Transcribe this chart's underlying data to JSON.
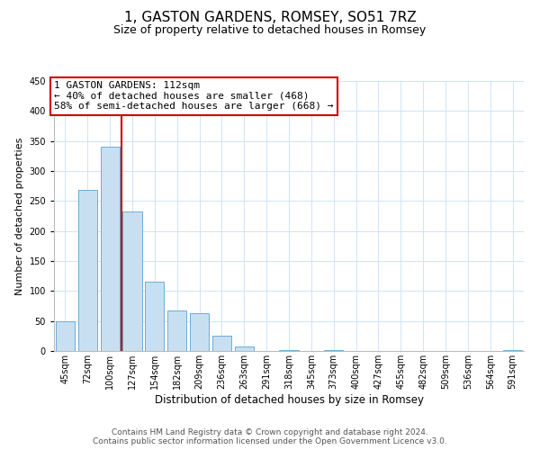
{
  "title": "1, GASTON GARDENS, ROMSEY, SO51 7RZ",
  "subtitle": "Size of property relative to detached houses in Romsey",
  "xlabel": "Distribution of detached houses by size in Romsey",
  "ylabel": "Number of detached properties",
  "bar_labels": [
    "45sqm",
    "72sqm",
    "100sqm",
    "127sqm",
    "154sqm",
    "182sqm",
    "209sqm",
    "236sqm",
    "263sqm",
    "291sqm",
    "318sqm",
    "345sqm",
    "373sqm",
    "400sqm",
    "427sqm",
    "455sqm",
    "482sqm",
    "509sqm",
    "536sqm",
    "564sqm",
    "591sqm"
  ],
  "bar_values": [
    50,
    268,
    340,
    233,
    115,
    68,
    63,
    25,
    7,
    0,
    2,
    0,
    2,
    0,
    0,
    0,
    0,
    0,
    0,
    0,
    2
  ],
  "bar_color": "#c8dff2",
  "bar_edge_color": "#6aaed6",
  "red_line_x": 2.5,
  "annotation_title": "1 GASTON GARDENS: 112sqm",
  "annotation_line1": "← 40% of detached houses are smaller (468)",
  "annotation_line2": "58% of semi-detached houses are larger (668) →",
  "annotation_box_color": "#ffffff",
  "annotation_box_edge": "#cc0000",
  "red_line_color": "#cc0000",
  "ylim": [
    0,
    450
  ],
  "grid_color": "#d0e4f7",
  "footer_line1": "Contains HM Land Registry data © Crown copyright and database right 2024.",
  "footer_line2": "Contains public sector information licensed under the Open Government Licence v3.0.",
  "background_color": "#ffffff",
  "title_fontsize": 11,
  "subtitle_fontsize": 9,
  "xlabel_fontsize": 8.5,
  "ylabel_fontsize": 8,
  "tick_fontsize": 7,
  "footer_fontsize": 6.5,
  "annotation_fontsize": 8
}
